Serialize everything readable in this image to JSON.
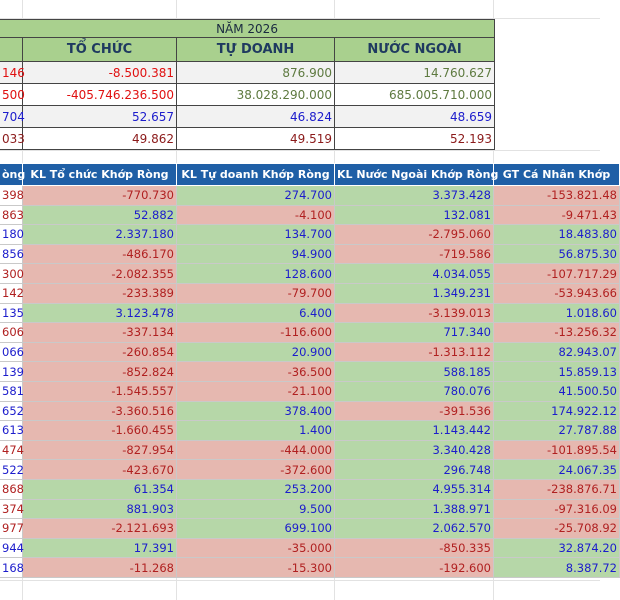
{
  "summary": {
    "year_label": "NĂM 2026",
    "headers": [
      "",
      "TỔ CHỨC",
      "TỰ DOANH",
      "NƯỚC NGOÀI"
    ],
    "rows": [
      [
        "146",
        "-8.500.381",
        "876.900",
        "14.760.627"
      ],
      [
        "500",
        "-405.746.236.500",
        "38.028.290.000",
        "685.005.710.000"
      ],
      [
        "704",
        "52.657",
        "46.824",
        "48.659"
      ],
      [
        "033",
        "49.862",
        "49.519",
        "52.193"
      ]
    ]
  },
  "detail": {
    "headers": [
      "òng",
      "KL Tổ chức Khớp Ròng",
      "KL Tự doanh Khớp Ròng",
      "KL Nước Ngoài Khớp Ròng",
      "GT Cá Nhân Khớp"
    ],
    "rows": [
      [
        "398",
        "-770.730",
        "274.700",
        "3.373.428",
        "-153.821.48"
      ],
      [
        "863",
        "52.882",
        "-4.100",
        "132.081",
        "-9.471.43"
      ],
      [
        "180",
        "2.337.180",
        "134.700",
        "-2.795.060",
        "18.483.80"
      ],
      [
        "856",
        "-486.170",
        "94.900",
        "-719.586",
        "56.875.30"
      ],
      [
        "300",
        "-2.082.355",
        "128.600",
        "4.034.055",
        "-107.717.29"
      ],
      [
        "142",
        "-233.389",
        "-79.700",
        "1.349.231",
        "-53.943.66"
      ],
      [
        "135",
        "3.123.478",
        "6.400",
        "-3.139.013",
        "1.018.60"
      ],
      [
        "606",
        "-337.134",
        "-116.600",
        "717.340",
        "-13.256.32"
      ],
      [
        "066",
        "-260.854",
        "20.900",
        "-1.313.112",
        "82.943.07"
      ],
      [
        "139",
        "-852.824",
        "-36.500",
        "588.185",
        "15.859.13"
      ],
      [
        "581",
        "-1.545.557",
        "-21.100",
        "780.076",
        "41.500.50"
      ],
      [
        "652",
        "-3.360.516",
        "378.400",
        "-391.536",
        "174.922.12"
      ],
      [
        "613",
        "-1.660.455",
        "1.400",
        "1.143.442",
        "27.787.88"
      ],
      [
        "474",
        "-827.954",
        "-444.000",
        "3.340.428",
        "-101.895.54"
      ],
      [
        "522",
        "-423.670",
        "-372.600",
        "296.748",
        "24.067.35"
      ],
      [
        "868",
        "61.354",
        "253.200",
        "4.955.314",
        "-238.876.71"
      ],
      [
        "374",
        "881.903",
        "9.500",
        "1.388.971",
        "-97.316.09"
      ],
      [
        "977",
        "-2.121.693",
        "699.100",
        "2.062.570",
        "-25.708.92"
      ],
      [
        "944",
        "17.391",
        "-35.000",
        "-850.335",
        "32.874.20"
      ],
      [
        "168",
        "-11.268",
        "-15.300",
        "-192.600",
        "8.387.72"
      ]
    ],
    "first_col_colors": [
      "red",
      "red",
      "blue",
      "blue",
      "red",
      "red",
      "blue",
      "red",
      "blue",
      "blue",
      "blue",
      "blue",
      "blue",
      "red",
      "blue",
      "red",
      "red",
      "red",
      "blue",
      "blue"
    ]
  },
  "colors": {
    "positive_fill": "#b6d7a8",
    "negative_fill": "#e6b8b0",
    "header_fill": "#1f5fa6",
    "summary_fill": "#a9d08e"
  }
}
